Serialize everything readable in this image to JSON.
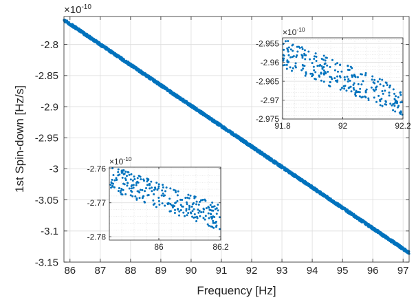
{
  "chart_data": [
    {
      "id": "main",
      "type": "scatter",
      "xlabel": "Frequency [Hz]",
      "ylabel": "1st Spin-down [Hz/s]",
      "exponent": "×10",
      "exponent_power": "-10",
      "xlim": [
        85.8,
        97.2
      ],
      "ylim": [
        -3.15,
        -2.755
      ],
      "x_ticks": [
        86,
        87,
        88,
        89,
        90,
        91,
        92,
        93,
        94,
        95,
        96,
        97
      ],
      "x_tick_labels": [
        "86",
        "87",
        "88",
        "89",
        "90",
        "91",
        "92",
        "93",
        "94",
        "95",
        "96",
        "97"
      ],
      "y_ticks": [
        -2.8,
        -2.85,
        -2.9,
        -2.95,
        -3.0,
        -3.05,
        -3.1,
        -3.15
      ],
      "y_tick_labels": [
        "-2.8",
        "-2.85",
        "-2.9",
        "-2.95",
        "-3",
        "-3.05",
        "-3.1",
        "-3.15"
      ],
      "grid": true,
      "marker_color": "#0072BD",
      "series": [
        {
          "x_start": 85.8,
          "y_start": -2.7605,
          "x_end": 97.2,
          "y_end": -3.135,
          "band_width": 0.0045
        }
      ]
    },
    {
      "id": "inset_high",
      "type": "scatter",
      "exponent": "×10",
      "exponent_power": "-10",
      "xlim": [
        91.8,
        92.2
      ],
      "ylim": [
        -2.975,
        -2.9535
      ],
      "x_ticks": [
        91.8,
        92,
        92.2
      ],
      "x_tick_labels": [
        "91.8",
        "92",
        "92.2"
      ],
      "y_ticks": [
        -2.955,
        -2.96,
        -2.965,
        -2.97,
        -2.975
      ],
      "y_tick_labels": [
        "-2.955",
        "-2.96",
        "-2.965",
        "-2.97",
        "-2.975"
      ],
      "grid": true,
      "marker_color": "#0072BD",
      "series": [
        {
          "x_start": 91.8,
          "y_start": -2.9575,
          "x_end": 92.2,
          "y_end": -2.9705,
          "band_width": 0.0075
        }
      ]
    },
    {
      "id": "inset_low",
      "type": "scatter",
      "exponent": "×10",
      "exponent_power": "-10",
      "xlim": [
        85.84,
        86.2
      ],
      "ylim": [
        -2.781,
        -2.7595
      ],
      "x_ticks": [
        86,
        86.2
      ],
      "x_tick_labels": [
        "86",
        "86.2"
      ],
      "y_ticks": [
        -2.76,
        -2.77,
        -2.78
      ],
      "y_tick_labels": [
        "-2.76",
        "-2.77",
        "-2.78"
      ],
      "grid": true,
      "marker_color": "#0072BD",
      "series": [
        {
          "x_start": 85.84,
          "y_start": -2.7625,
          "x_end": 86.2,
          "y_end": -2.7745,
          "band_width": 0.0075
        }
      ]
    }
  ]
}
